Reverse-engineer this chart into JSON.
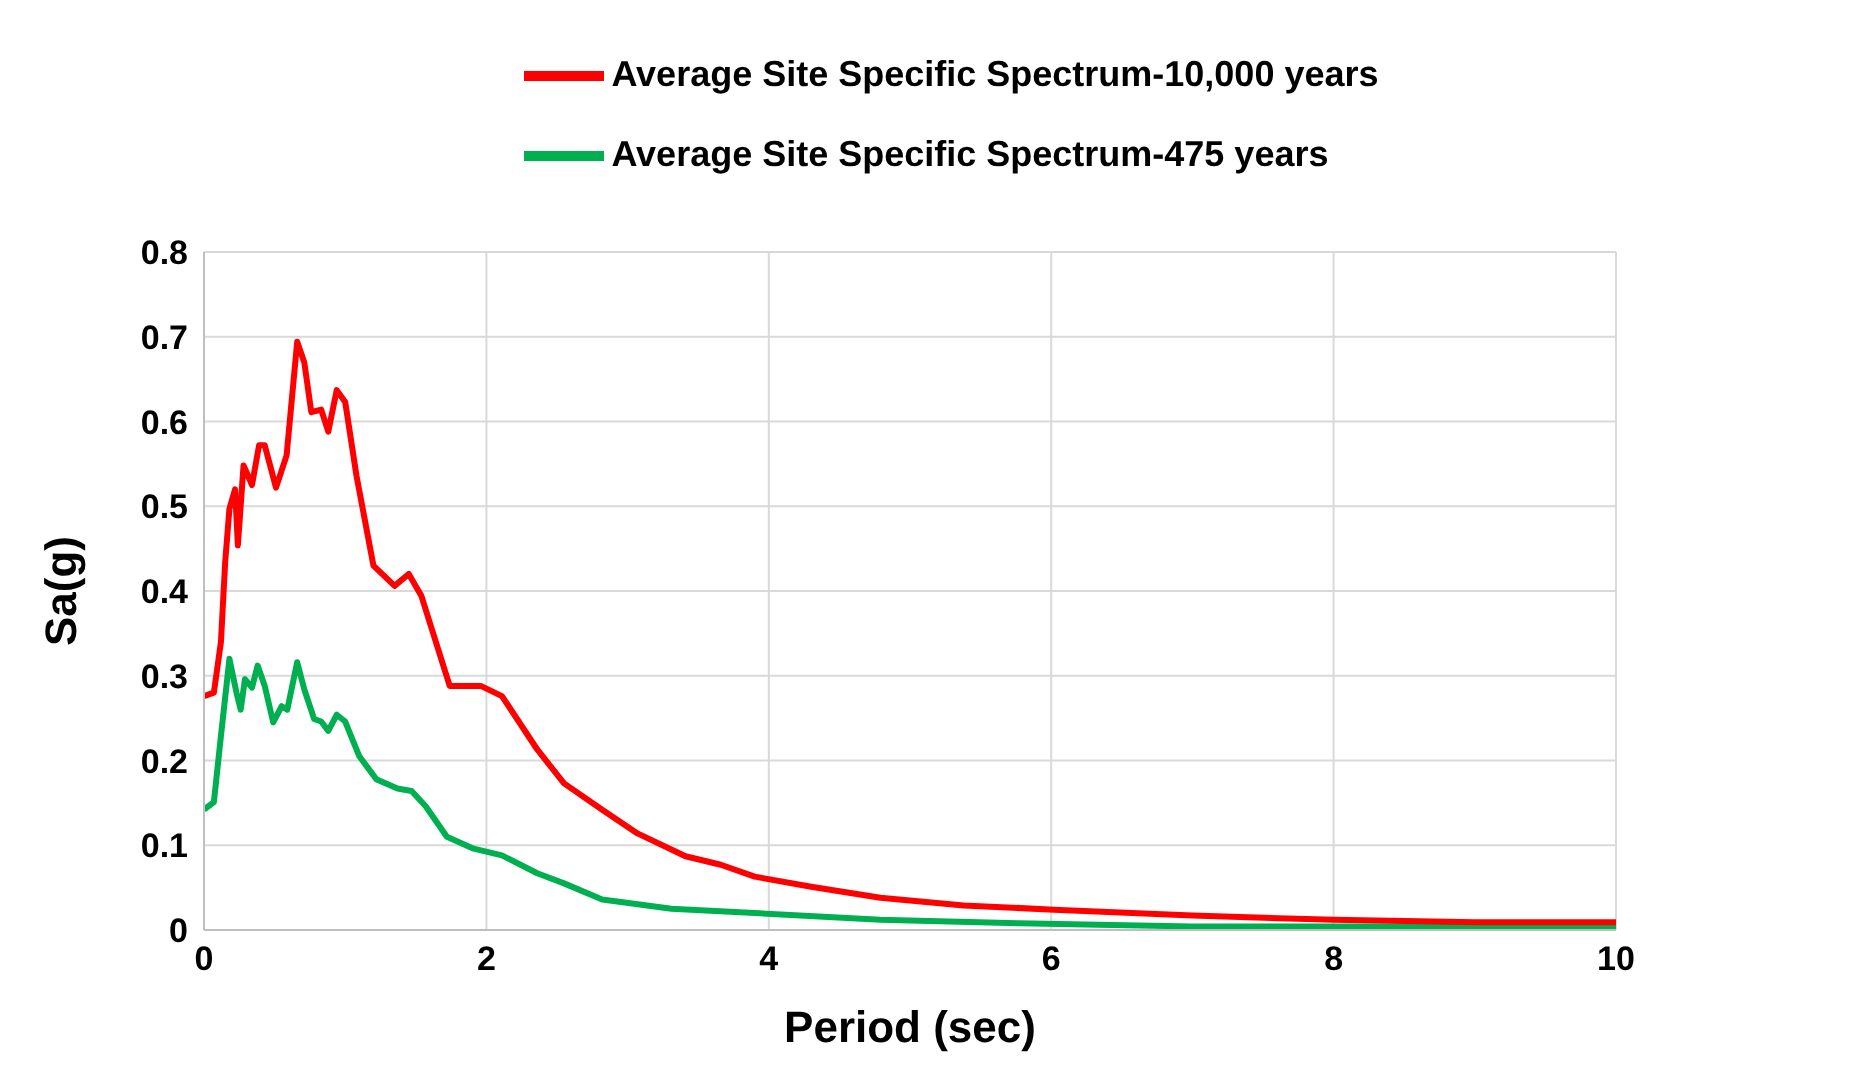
{
  "chart_data": {
    "type": "line",
    "xlabel": "Period (sec)",
    "ylabel": "Sa(g)",
    "xlim": [
      0,
      10
    ],
    "xticks": [
      0,
      2,
      4,
      6,
      8,
      10
    ],
    "ylim": [
      0,
      0.8
    ],
    "yticks": [
      0,
      0.1,
      0.2,
      0.3,
      0.4,
      0.5,
      0.6,
      0.7,
      0.8
    ],
    "grid": true,
    "legend": "top",
    "marker": "none",
    "line_style": "solid",
    "series": [
      {
        "name": "Average Site Specific Spectrum-475 years",
        "color": "#00b050",
        "x": [
          0,
          0.07,
          0.12,
          0.18,
          0.23,
          0.26,
          0.29,
          0.34,
          0.38,
          0.43,
          0.49,
          0.55,
          0.59,
          0.66,
          0.71,
          0.78,
          0.83,
          0.88,
          0.94,
          1.0,
          1.1,
          1.22,
          1.37,
          1.47,
          1.57,
          1.72,
          1.91,
          2.11,
          2.36,
          2.55,
          2.82,
          3.31,
          3.9,
          4.79,
          5.77,
          7.0,
          8.0,
          10.0
        ],
        "values": [
          0.142,
          0.151,
          0.229,
          0.32,
          0.28,
          0.26,
          0.296,
          0.286,
          0.312,
          0.288,
          0.245,
          0.264,
          0.26,
          0.316,
          0.284,
          0.249,
          0.246,
          0.235,
          0.254,
          0.246,
          0.205,
          0.178,
          0.167,
          0.164,
          0.146,
          0.11,
          0.096,
          0.088,
          0.067,
          0.055,
          0.036,
          0.025,
          0.02,
          0.012,
          0.008,
          0.004,
          0.004,
          0.004
        ]
      },
      {
        "name": "Average Site Specific Spectrum-10,000 years",
        "color": "#ff0000",
        "x": [
          0,
          0.07,
          0.12,
          0.15,
          0.18,
          0.22,
          0.24,
          0.28,
          0.34,
          0.39,
          0.43,
          0.51,
          0.585,
          0.66,
          0.71,
          0.76,
          0.83,
          0.88,
          0.94,
          1.0,
          1.08,
          1.2,
          1.35,
          1.45,
          1.54,
          1.74,
          1.96,
          2.11,
          2.36,
          2.55,
          2.82,
          3.07,
          3.41,
          3.66,
          3.9,
          4.3,
          4.79,
          5.38,
          6.02,
          7.0,
          8.0,
          9.0,
          10.0
        ],
        "values": [
          0.276,
          0.28,
          0.34,
          0.434,
          0.497,
          0.52,
          0.454,
          0.548,
          0.525,
          0.572,
          0.572,
          0.522,
          0.56,
          0.694,
          0.67,
          0.611,
          0.614,
          0.588,
          0.637,
          0.623,
          0.536,
          0.43,
          0.406,
          0.42,
          0.394,
          0.288,
          0.288,
          0.276,
          0.213,
          0.173,
          0.142,
          0.114,
          0.087,
          0.077,
          0.063,
          0.051,
          0.038,
          0.029,
          0.024,
          0.017,
          0.012,
          0.009,
          0.009
        ]
      }
    ]
  }
}
